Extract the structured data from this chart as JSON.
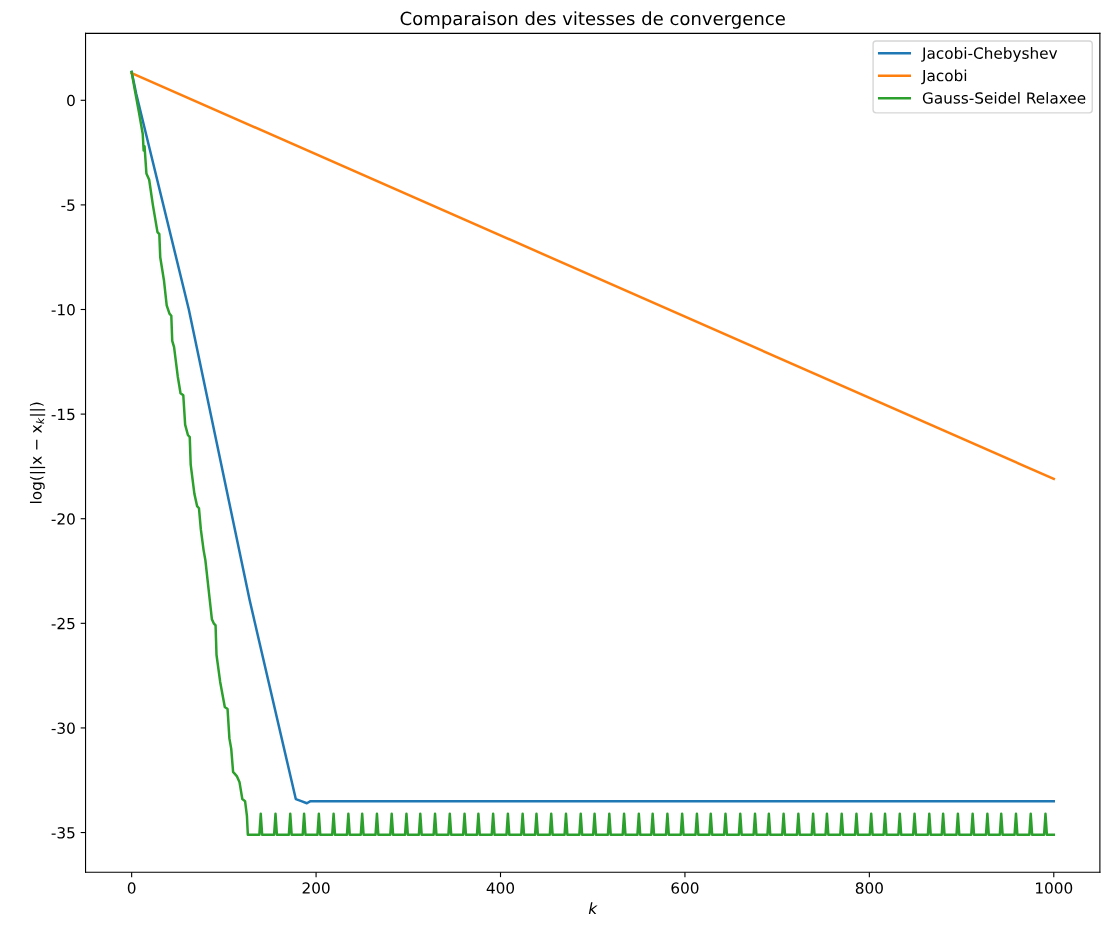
{
  "chart_data": {
    "type": "line",
    "title": "Comparaison des vitesses de convergence",
    "xlabel": "k",
    "ylabel": "log(||x − x$_{k}$||)",
    "xlim": [
      -50,
      1050
    ],
    "xticks": [
      0,
      200,
      400,
      600,
      800,
      1000
    ],
    "ylim": [
      -36.9,
      3.2
    ],
    "yticks": [
      0,
      -5,
      -10,
      -15,
      -20,
      -25,
      -30,
      -35
    ],
    "grid": false,
    "legend": "top right",
    "marker": "none",
    "line_style": "solid",
    "series": [
      {
        "name": "Jacobi-Chebyshev",
        "color": "#1f77b4",
        "x": [
          0,
          5,
          62,
          128,
          178,
          184,
          190,
          194,
          1000
        ],
        "values": [
          1.35,
          0.3,
          -10,
          -23.9,
          -33.4,
          -33.5,
          -33.6,
          -33.5,
          -33.5
        ]
      },
      {
        "name": "Jacobi",
        "color": "#ff7f0e",
        "x": [
          0,
          1000
        ],
        "values": [
          1.3,
          -18.1
        ]
      },
      {
        "name": "Gauss-Seidel Relaxee",
        "color": "#2ca02c",
        "x": [
          0,
          3,
          8,
          12,
          13,
          14,
          16,
          19,
          23,
          28,
          30,
          31,
          35,
          38,
          41,
          43,
          44,
          46,
          50,
          53,
          56,
          58,
          61,
          63,
          64,
          68,
          71,
          73,
          75,
          78,
          80,
          82,
          87,
          89,
          91,
          92,
          96,
          101,
          104,
          106,
          108,
          110,
          114,
          117,
          120,
          123,
          125,
          126,
          138.5,
          140,
          141.5,
          154.5,
          156,
          157.5,
          170.5,
          172,
          173.5,
          185.5,
          187,
          188.5,
          201.5,
          203,
          204.5,
          217.5,
          219,
          220.5,
          233.5,
          235,
          236.5,
          248.5,
          250,
          251.5,
          264.5,
          266,
          267.5,
          280.5,
          282,
          283.5,
          296.5,
          298,
          299.5,
          311.5,
          313,
          314.5,
          327.5,
          329,
          330.5,
          343.5,
          345,
          346.5,
          359.5,
          361,
          362.5,
          374.5,
          376,
          377.5,
          390.5,
          392,
          393.5,
          406.5,
          408,
          409.5,
          422.5,
          424,
          425.5,
          437.5,
          439,
          440.5,
          453.5,
          455,
          456.5,
          469.5,
          471,
          472.5,
          485.5,
          487,
          488.5,
          500.5,
          502,
          503.5,
          516.5,
          518,
          519.5,
          532.5,
          534,
          535.5,
          548.5,
          550,
          551.5,
          563.5,
          565,
          566.5,
          579.5,
          581,
          582.5,
          595.5,
          597,
          598.5,
          611.5,
          613,
          614.5,
          626.5,
          628,
          629.5,
          642.5,
          644,
          645.5,
          658.5,
          660,
          661.5,
          674.5,
          676,
          677.5,
          689.5,
          691,
          692.5,
          705.5,
          707,
          708.5,
          721.5,
          723,
          724.5,
          737.5,
          739,
          740.5,
          752.5,
          754,
          755.5,
          768.5,
          770,
          771.5,
          784.5,
          786,
          787.5,
          800.5,
          802,
          803.5,
          815.5,
          817,
          818.5,
          831.5,
          833,
          834.5,
          847.5,
          849,
          850.5,
          863.5,
          865,
          866.5,
          878.5,
          880,
          881.5,
          894.5,
          896,
          897.5,
          910.5,
          912,
          913.5,
          926.5,
          928,
          929.5,
          941.5,
          943,
          944.5,
          957.5,
          959,
          960.5,
          973.5,
          975,
          976.5,
          989.5,
          991,
          992.5,
          1000
        ],
        "values": [
          1.35,
          0.6,
          -0.6,
          -1.6,
          -2.4,
          -2.2,
          -3.5,
          -3.8,
          -5,
          -6.3,
          -6.4,
          -7.5,
          -8.6,
          -9.8,
          -10.2,
          -10.3,
          -11.5,
          -11.8,
          -13.2,
          -14,
          -14.1,
          -15.5,
          -16,
          -16.1,
          -17.4,
          -18.8,
          -19.4,
          -19.5,
          -20.5,
          -21.5,
          -22,
          -22.8,
          -24.8,
          -25,
          -25.1,
          -26.5,
          -27.8,
          -29,
          -29.1,
          -30.5,
          -31,
          -32.1,
          -32.3,
          -32.6,
          -33.4,
          -33.5,
          -34.2,
          -35.1,
          -35.1,
          -34.1,
          -35.1,
          -35.1,
          -34.1,
          -35.1,
          -35.1,
          -34.1,
          -35.1,
          -35.1,
          -34.1,
          -35.1,
          -35.1,
          -34.1,
          -35.1,
          -35.1,
          -34.1,
          -35.1,
          -35.1,
          -34.1,
          -35.1,
          -35.1,
          -34.1,
          -35.1,
          -35.1,
          -34.1,
          -35.1,
          -35.1,
          -34.1,
          -35.1,
          -35.1,
          -34.1,
          -35.1,
          -35.1,
          -34.1,
          -35.1,
          -35.1,
          -34.1,
          -35.1,
          -35.1,
          -34.1,
          -35.1,
          -35.1,
          -34.1,
          -35.1,
          -35.1,
          -34.1,
          -35.1,
          -35.1,
          -34.1,
          -35.1,
          -35.1,
          -34.1,
          -35.1,
          -35.1,
          -34.1,
          -35.1,
          -35.1,
          -34.1,
          -35.1,
          -35.1,
          -34.1,
          -35.1,
          -35.1,
          -34.1,
          -35.1,
          -35.1,
          -34.1,
          -35.1,
          -35.1,
          -34.1,
          -35.1,
          -35.1,
          -34.1,
          -35.1,
          -35.1,
          -34.1,
          -35.1,
          -35.1,
          -34.1,
          -35.1,
          -35.1,
          -34.1,
          -35.1,
          -35.1,
          -34.1,
          -35.1,
          -35.1,
          -34.1,
          -35.1,
          -35.1,
          -34.1,
          -35.1,
          -35.1,
          -34.1,
          -35.1,
          -35.1,
          -34.1,
          -35.1,
          -35.1,
          -34.1,
          -35.1,
          -35.1,
          -34.1,
          -35.1,
          -35.1,
          -34.1,
          -35.1,
          -35.1,
          -34.1,
          -35.1,
          -35.1,
          -34.1,
          -35.1,
          -35.1,
          -34.1,
          -35.1,
          -35.1,
          -34.1,
          -35.1,
          -35.1,
          -34.1,
          -35.1,
          -35.1,
          -34.1,
          -35.1,
          -35.1,
          -34.1,
          -35.1,
          -35.1,
          -34.1,
          -35.1,
          -35.1,
          -34.1,
          -35.1,
          -35.1,
          -34.1,
          -35.1,
          -35.1,
          -34.1,
          -35.1,
          -35.1,
          -34.1,
          -35.1,
          -35.1,
          -34.1,
          -35.1,
          -35.1,
          -34.1,
          -35.1,
          -35.1,
          -34.1,
          -35.1,
          -35.1,
          -34.1,
          -35.1,
          -35.1,
          -34.1,
          -35.1,
          -35.1,
          -34.1,
          -35.1,
          -35.1,
          -34.1,
          -35.1,
          -35.1
        ]
      }
    ]
  }
}
